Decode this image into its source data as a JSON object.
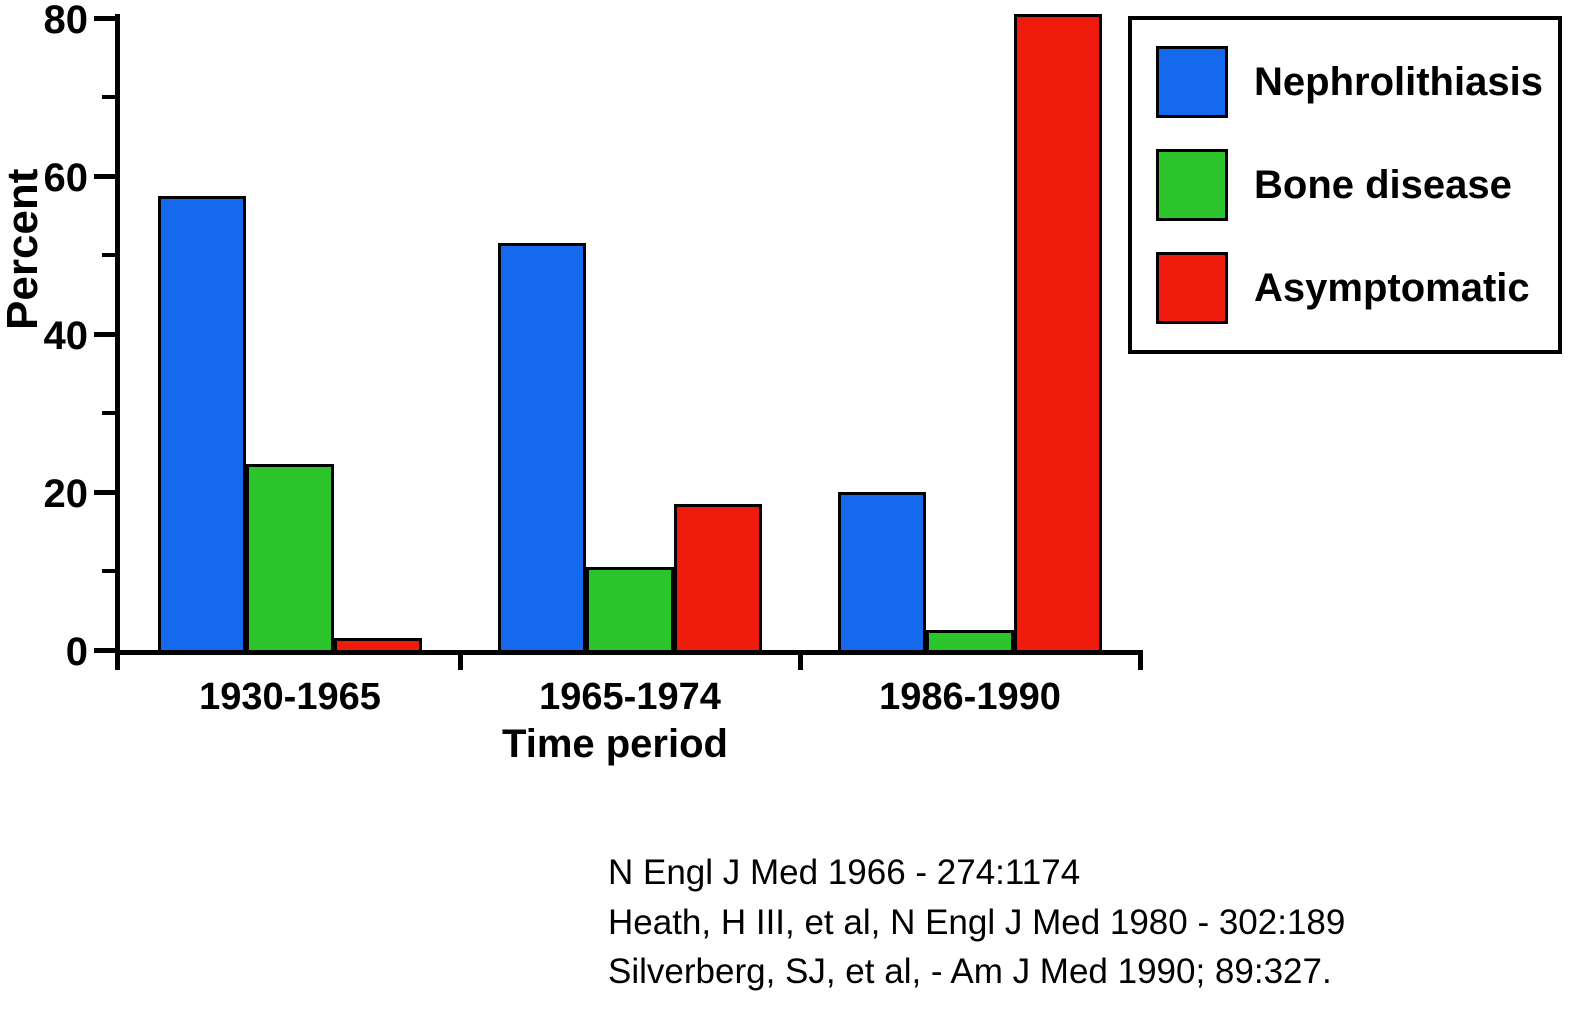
{
  "chart_data": {
    "type": "bar",
    "categories": [
      "1930-1965",
      "1965-1974",
      "1986-1990"
    ],
    "series": [
      {
        "name": "Nephrolithiasis",
        "color": "#1569ed",
        "values": [
          57.5,
          51.5,
          20
        ]
      },
      {
        "name": "Bone disease",
        "color": "#2bc42b",
        "values": [
          23.5,
          10.5,
          2.5
        ]
      },
      {
        "name": "Asymptomatic",
        "color": "#ef1c0d",
        "values": [
          1.5,
          18.5,
          80.5
        ]
      }
    ],
    "title": "",
    "xlabel": "Time period",
    "ylabel": "Percent",
    "ylim": [
      0,
      80
    ],
    "yticks": [
      0,
      20,
      40,
      60,
      80
    ],
    "minor_yticks": [
      10,
      30,
      50,
      70
    ],
    "grid": false,
    "legend_position": "top-right"
  },
  "citations": {
    "line1": "N Engl J Med 1966 - 274:1174",
    "line2": "Heath, H III, et al, N Engl J Med 1980 - 302:189",
    "line3": "Silverberg, SJ, et al, - Am J Med 1990; 89:327."
  }
}
